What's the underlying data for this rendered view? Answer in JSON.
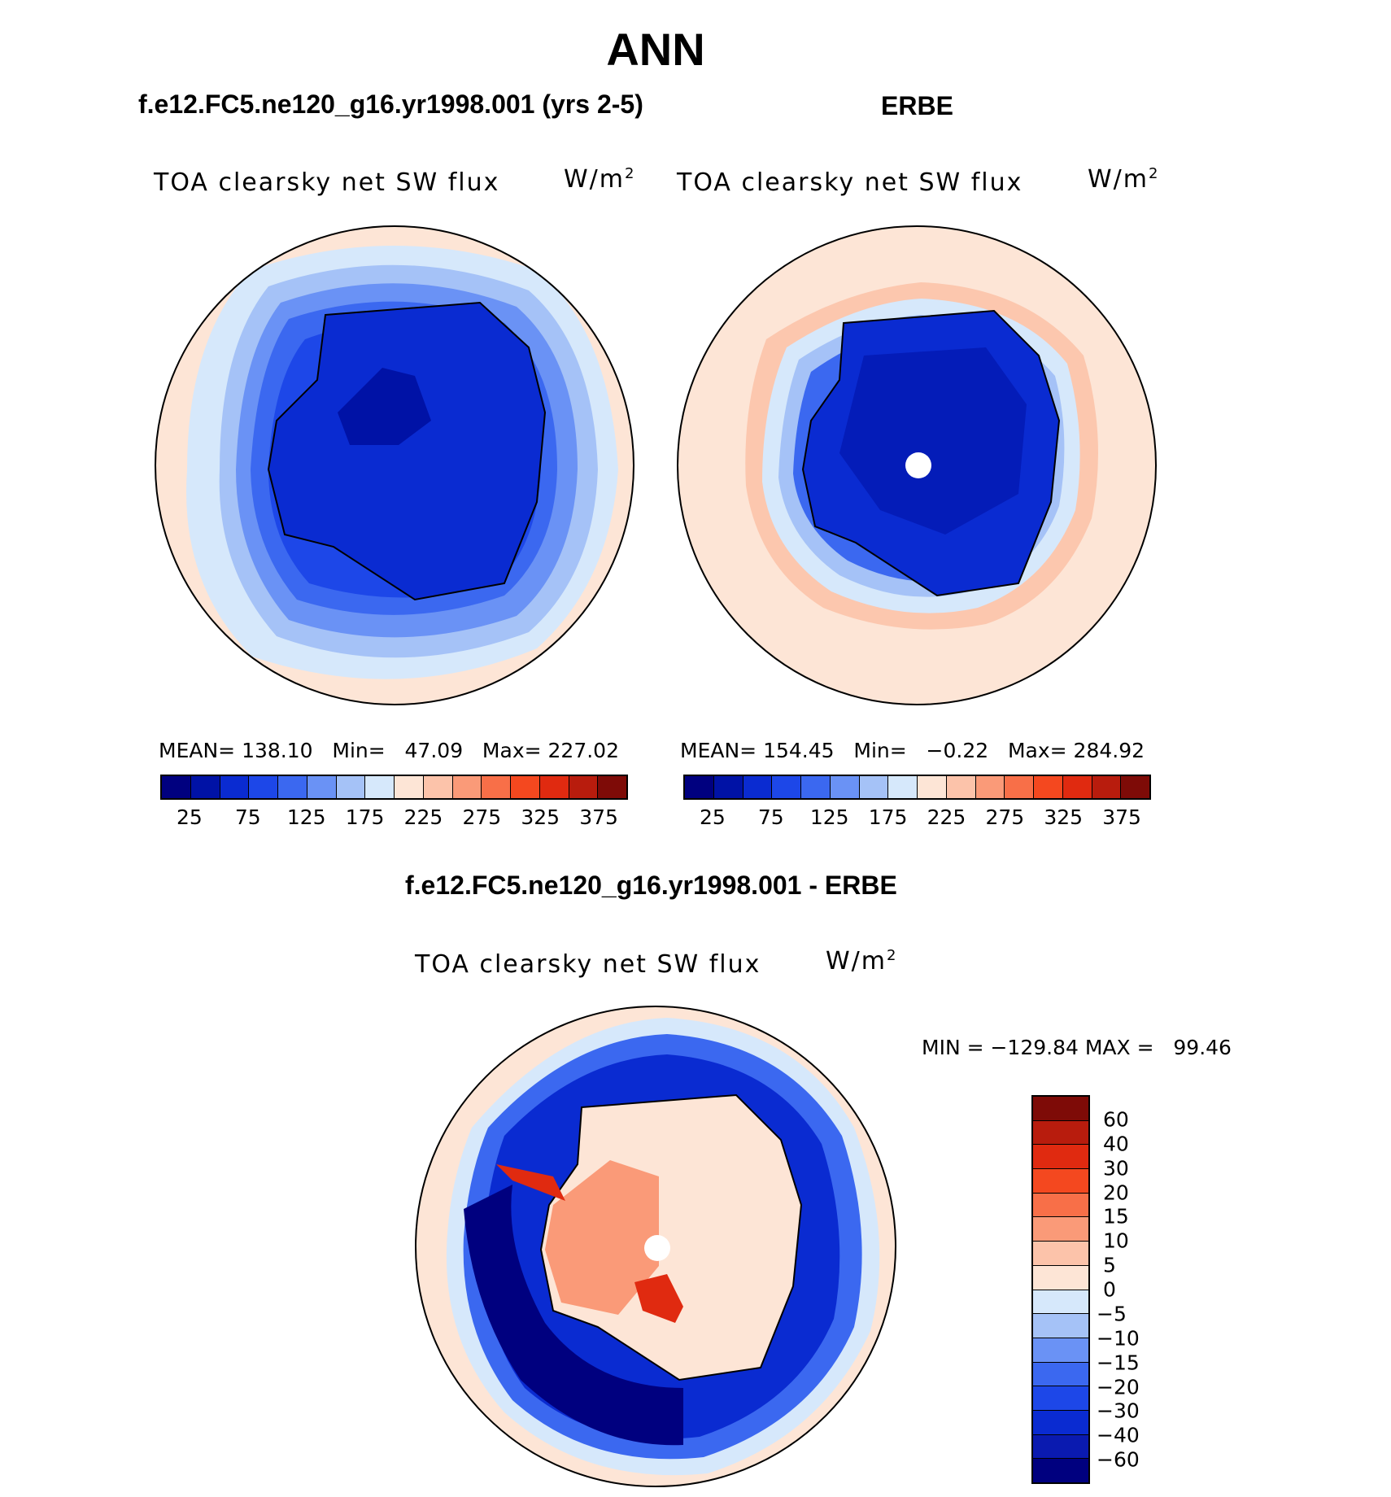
{
  "title": "ANN",
  "panels": {
    "model": {
      "case_title": "f.e12.FC5.ne120_g16.yr1998.001 (yrs 2-5)",
      "field_label": "TOA clearsky net SW flux",
      "units": "W/m",
      "units_sup": "2",
      "stats": "MEAN= 138.10   Min=   47.09   Max= 227.02",
      "mean": 138.1,
      "min": 47.09,
      "max": 227.02
    },
    "obs": {
      "case_title": "ERBE",
      "field_label": "TOA clearsky net SW flux",
      "units": "W/m",
      "units_sup": "2",
      "stats": "MEAN= 154.45   Min=   −0.22   Max= 284.92",
      "mean": 154.45,
      "min": -0.22,
      "max": 284.92
    },
    "diff": {
      "case_title": "f.e12.FC5.ne120_g16.yr1998.001 - ERBE",
      "field_label": "TOA clearsky net SW flux",
      "units": "W/m",
      "units_sup": "2",
      "stats": "MIN = −129.84 MAX =   99.46",
      "min": -129.84,
      "max": 99.46
    }
  },
  "colorbars": {
    "abs": {
      "colors": [
        "#00007f",
        "#0012a6",
        "#0a2bd1",
        "#1d47e8",
        "#3b68f0",
        "#6a92f5",
        "#a5c2f7",
        "#d6e8fb",
        "#fde5d6",
        "#fcc3aa",
        "#fa9a78",
        "#f86f48",
        "#f4481f",
        "#e02a10",
        "#b81c0d",
        "#7e0b07"
      ],
      "ticks": [
        "25",
        "75",
        "125",
        "175",
        "225",
        "275",
        "325",
        "375"
      ]
    },
    "diff": {
      "colors": [
        "#00007f",
        "#0a1ab0",
        "#0a2bd1",
        "#1d47e8",
        "#3b68f0",
        "#6a92f5",
        "#a5c2f7",
        "#d6e8fb",
        "#fde5d6",
        "#fcc3aa",
        "#fa9a78",
        "#f86f48",
        "#f4481f",
        "#e02a10",
        "#b81c0d",
        "#7e0b07"
      ],
      "ticks": [
        "−60",
        "−40",
        "−30",
        "−20",
        "−15",
        "−10",
        "−5",
        "0",
        "5",
        "10",
        "15",
        "20",
        "30",
        "40",
        "60"
      ]
    }
  }
}
